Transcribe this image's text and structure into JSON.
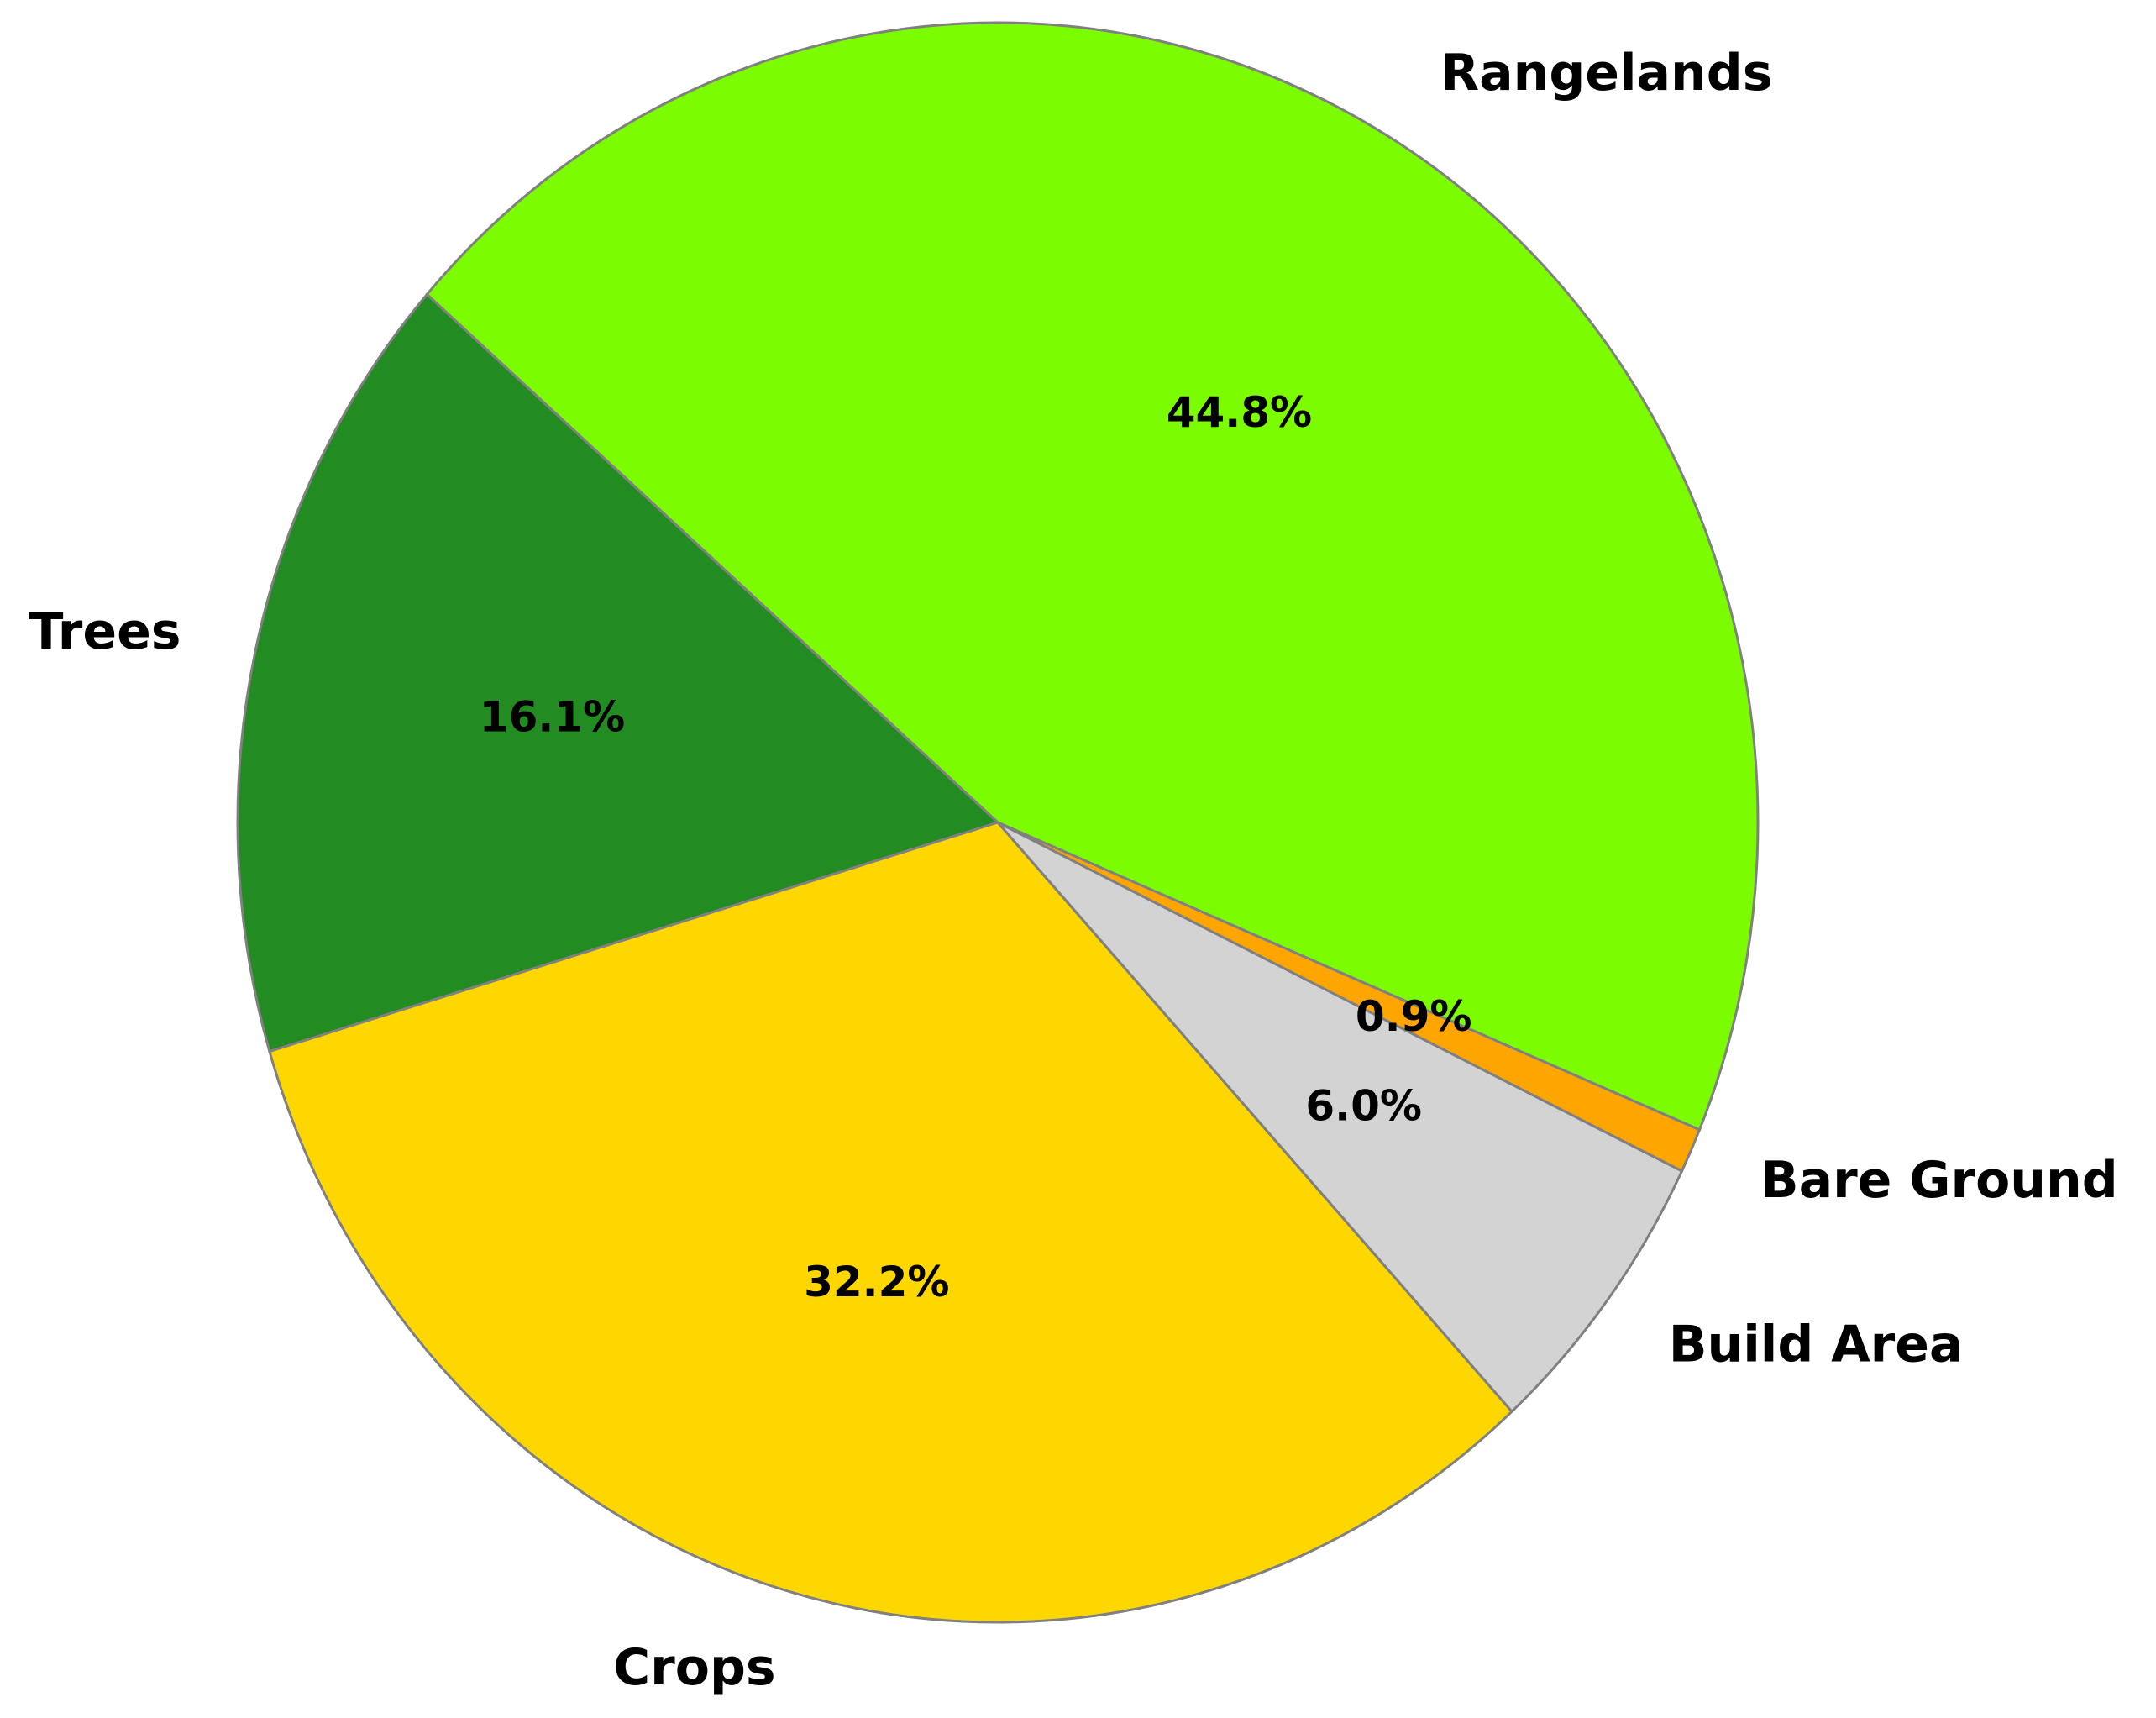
{
  "chart_data": {
    "type": "pie",
    "categories": [
      "Rangelands",
      "Trees",
      "Crops",
      "Build Area",
      "Bare Ground"
    ],
    "values": [
      44.8,
      16.1,
      32.2,
      6.0,
      0.9
    ],
    "value_labels": [
      "44.8%",
      "16.1%",
      "32.2%",
      "6.0%",
      "0.9%"
    ],
    "colors": [
      "#7CFC00",
      "#228B22",
      "#FFD700",
      "#D3D3D3",
      "#FFA500"
    ],
    "edge_color": "#808080"
  }
}
